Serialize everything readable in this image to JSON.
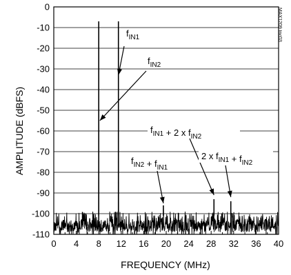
{
  "chart_data": {
    "type": "line",
    "title": "",
    "xlabel": "FREQUENCY (MHz)",
    "ylabel": "AMPLITUDE (dBFS)",
    "xlim": [
      0,
      40
    ],
    "ylim": [
      -110,
      0
    ],
    "xticks": [
      0,
      4,
      8,
      12,
      16,
      20,
      24,
      28,
      32,
      36,
      40
    ],
    "yticks": [
      0,
      -10,
      -20,
      -30,
      -40,
      -50,
      -60,
      -70,
      -80,
      -90,
      -100,
      -110
    ],
    "grid": "horizontal",
    "noise_floor_dbfs": -101,
    "series": [
      {
        "values_description_key": "spectrum",
        "tones": [
          {
            "x": 8.0,
            "y": -7
          },
          {
            "x": 11.5,
            "y": -7
          },
          {
            "x": 19.5,
            "y": -96
          },
          {
            "x": 28.5,
            "y": -93
          },
          {
            "x": 31.5,
            "y": -94
          }
        ]
      }
    ],
    "annotations": [
      {
        "id": "fin1",
        "main": "f",
        "sub": "IN1",
        "arrow_to": {
          "x": 11.5,
          "y": -33
        }
      },
      {
        "id": "fin2",
        "main": "f",
        "sub": "IN2",
        "arrow_to": {
          "x": 8.2,
          "y": -55
        }
      },
      {
        "id": "sum",
        "parts": [
          [
            "f",
            "IN2"
          ],
          [
            " + f",
            "IN1"
          ]
        ],
        "arrow_to": {
          "x": 19.5,
          "y": -95
        }
      },
      {
        "id": "f1p2f2",
        "parts": [
          [
            "f",
            "IN1"
          ],
          [
            " + 2 x f",
            "IN2"
          ]
        ],
        "arrow_to": {
          "x": 28.5,
          "y": -91
        }
      },
      {
        "id": "twof1pf2",
        "parts": [
          [
            "2 x f",
            "IN1"
          ],
          [
            " + f",
            "IN2"
          ]
        ],
        "arrow_to": {
          "x": 31.5,
          "y": -92
        }
      }
    ],
    "watermark": "MAX1209 toc03"
  }
}
